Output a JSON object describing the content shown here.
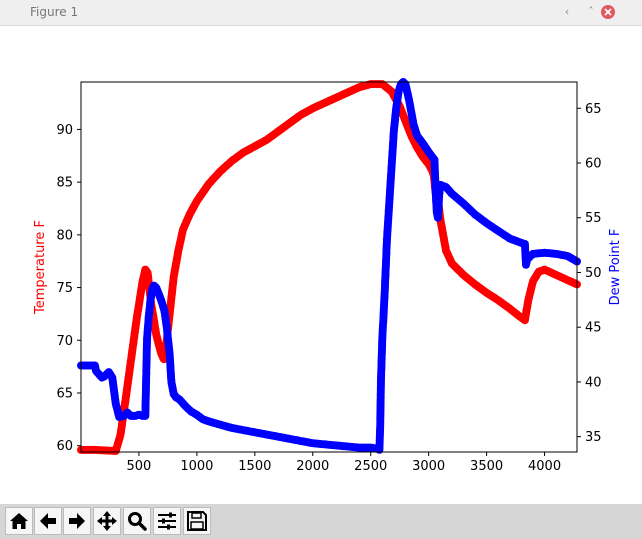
{
  "window": {
    "title": "Figure 1",
    "controls": {
      "minimize": "‹",
      "maximize": "ˆ",
      "close": "×"
    }
  },
  "toolbar": {
    "buttons": [
      {
        "name": "home-button",
        "icon": "home-icon"
      },
      {
        "name": "back-button",
        "icon": "arrow-left-icon"
      },
      {
        "name": "forward-button",
        "icon": "arrow-right-icon"
      },
      {
        "name": "pan-button",
        "icon": "move-icon"
      },
      {
        "name": "zoom-button",
        "icon": "magnifier-icon"
      },
      {
        "name": "configure-subplots-button",
        "icon": "sliders-icon"
      },
      {
        "name": "save-button",
        "icon": "floppy-disk-icon"
      }
    ]
  },
  "chart_data": {
    "type": "line",
    "title": "",
    "xlabel": "",
    "xlim": [
      0,
      4280
    ],
    "xticks": [
      500,
      1000,
      1500,
      2000,
      2500,
      3000,
      3500,
      4000
    ],
    "grid": false,
    "y_left": {
      "label": "Temperature F",
      "color": "#ff0000",
      "lim": [
        59.4,
        94.5
      ],
      "ticks": [
        60,
        65,
        70,
        75,
        80,
        85,
        90
      ]
    },
    "y_right": {
      "label": "Dew Point F",
      "color": "#0000ff",
      "lim": [
        33.6,
        67.4
      ],
      "ticks": [
        35,
        40,
        45,
        50,
        55,
        60,
        65
      ]
    },
    "series": [
      {
        "axis": "left",
        "color": "#ff0000",
        "marker": "o",
        "points": [
          [
            0,
            59.6
          ],
          [
            120,
            59.6
          ],
          [
            300,
            59.5
          ],
          [
            340,
            61
          ],
          [
            380,
            64
          ],
          [
            430,
            68
          ],
          [
            480,
            72
          ],
          [
            530,
            75.5
          ],
          [
            555,
            76.7
          ],
          [
            575,
            76.4
          ],
          [
            605,
            73.5
          ],
          [
            650,
            70.5
          ],
          [
            690,
            68.8
          ],
          [
            715,
            68.2
          ],
          [
            740,
            70
          ],
          [
            770,
            73
          ],
          [
            800,
            76
          ],
          [
            840,
            78.5
          ],
          [
            880,
            80.5
          ],
          [
            940,
            82
          ],
          [
            1000,
            83.2
          ],
          [
            1100,
            84.8
          ],
          [
            1200,
            86
          ],
          [
            1300,
            87
          ],
          [
            1400,
            87.8
          ],
          [
            1500,
            88.4
          ],
          [
            1600,
            89
          ],
          [
            1700,
            89.8
          ],
          [
            1800,
            90.6
          ],
          [
            1900,
            91.4
          ],
          [
            2000,
            92
          ],
          [
            2100,
            92.5
          ],
          [
            2200,
            93
          ],
          [
            2300,
            93.5
          ],
          [
            2400,
            94
          ],
          [
            2500,
            94.3
          ],
          [
            2600,
            94.3
          ],
          [
            2680,
            93.6
          ],
          [
            2750,
            92.2
          ],
          [
            2800,
            90.8
          ],
          [
            2850,
            89.4
          ],
          [
            2900,
            88.3
          ],
          [
            2950,
            87.4
          ],
          [
            3000,
            86.7
          ],
          [
            3030,
            86.1
          ],
          [
            3045,
            85.6
          ],
          [
            3060,
            84
          ],
          [
            3080,
            83.5
          ],
          [
            3100,
            81.5
          ],
          [
            3150,
            78.5
          ],
          [
            3200,
            77.3
          ],
          [
            3300,
            76.2
          ],
          [
            3400,
            75.3
          ],
          [
            3500,
            74.5
          ],
          [
            3600,
            73.8
          ],
          [
            3700,
            73
          ],
          [
            3780,
            72.3
          ],
          [
            3830,
            71.9
          ],
          [
            3860,
            73.8
          ],
          [
            3900,
            75.6
          ],
          [
            3950,
            76.5
          ],
          [
            4000,
            76.7
          ],
          [
            4100,
            76.2
          ],
          [
            4200,
            75.7
          ],
          [
            4280,
            75.3
          ]
        ]
      },
      {
        "axis": "right",
        "color": "#0000ff",
        "marker": "o",
        "points": [
          [
            0,
            41.5
          ],
          [
            120,
            41.5
          ],
          [
            130,
            41
          ],
          [
            180,
            40.4
          ],
          [
            200,
            40.5
          ],
          [
            240,
            40.9
          ],
          [
            270,
            40.4
          ],
          [
            300,
            38
          ],
          [
            330,
            36.8
          ],
          [
            370,
            36.9
          ],
          [
            400,
            37.2
          ],
          [
            430,
            36.9
          ],
          [
            470,
            36.9
          ],
          [
            500,
            37
          ],
          [
            530,
            36.9
          ],
          [
            555,
            36.9
          ],
          [
            570,
            44
          ],
          [
            585,
            46
          ],
          [
            600,
            47.5
          ],
          [
            615,
            48.5
          ],
          [
            630,
            48.8
          ],
          [
            650,
            48.6
          ],
          [
            680,
            47.8
          ],
          [
            700,
            47.2
          ],
          [
            720,
            46.5
          ],
          [
            740,
            45
          ],
          [
            750,
            44
          ],
          [
            765,
            42.5
          ],
          [
            780,
            40
          ],
          [
            800,
            38.9
          ],
          [
            820,
            38.6
          ],
          [
            850,
            38.4
          ],
          [
            900,
            37.8
          ],
          [
            950,
            37.3
          ],
          [
            1000,
            37
          ],
          [
            1050,
            36.6
          ],
          [
            1100,
            36.4
          ],
          [
            1200,
            36.1
          ],
          [
            1300,
            35.8
          ],
          [
            1400,
            35.6
          ],
          [
            1500,
            35.4
          ],
          [
            1600,
            35.2
          ],
          [
            1700,
            35
          ],
          [
            1800,
            34.8
          ],
          [
            1900,
            34.6
          ],
          [
            2000,
            34.4
          ],
          [
            2100,
            34.3
          ],
          [
            2200,
            34.2
          ],
          [
            2300,
            34.1
          ],
          [
            2400,
            34
          ],
          [
            2500,
            34
          ],
          [
            2560,
            33.9
          ],
          [
            2575,
            33.8
          ],
          [
            2582,
            36
          ],
          [
            2588,
            40
          ],
          [
            2600,
            44
          ],
          [
            2620,
            48
          ],
          [
            2640,
            53
          ],
          [
            2670,
            58
          ],
          [
            2700,
            63
          ],
          [
            2720,
            65
          ],
          [
            2740,
            66.5
          ],
          [
            2760,
            67.2
          ],
          [
            2780,
            67.4
          ],
          [
            2800,
            67.2
          ],
          [
            2830,
            65.8
          ],
          [
            2870,
            63.5
          ],
          [
            2900,
            62.5
          ],
          [
            2950,
            61.8
          ],
          [
            3000,
            61
          ],
          [
            3050,
            60.3
          ],
          [
            3060,
            57.5
          ],
          [
            3070,
            55.5
          ],
          [
            3080,
            55
          ],
          [
            3090,
            57
          ],
          [
            3100,
            58
          ],
          [
            3150,
            57.8
          ],
          [
            3200,
            57.2
          ],
          [
            3300,
            56.3
          ],
          [
            3400,
            55.3
          ],
          [
            3500,
            54.5
          ],
          [
            3600,
            53.8
          ],
          [
            3700,
            53.1
          ],
          [
            3800,
            52.7
          ],
          [
            3830,
            52.6
          ],
          [
            3840,
            50.7
          ],
          [
            3850,
            51.2
          ],
          [
            3900,
            51.7
          ],
          [
            4000,
            51.8
          ],
          [
            4100,
            51.7
          ],
          [
            4200,
            51.5
          ],
          [
            4280,
            51
          ]
        ]
      }
    ]
  }
}
